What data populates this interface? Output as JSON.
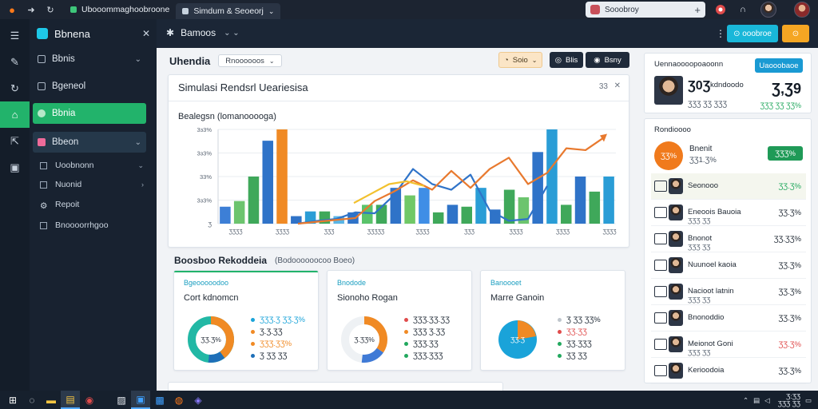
{
  "browser": {
    "tabs": [
      {
        "label": "Ubooommaghoobroone",
        "active": false
      },
      {
        "label": "Simdum & Seoeorj",
        "active": true
      }
    ],
    "address": "Sooobroy",
    "icons": [
      "firefox-icon",
      "forward-icon",
      "reload-icon",
      "shield-icon",
      "bell-icon",
      "avatar"
    ]
  },
  "sidebar": {
    "brand": "Bbnena",
    "close": "✕",
    "items": [
      {
        "label": "Bbnis",
        "chevron": "⌄"
      },
      {
        "label": "Bgeneol",
        "chevron": ""
      },
      {
        "label": "Bbnia",
        "chevron": "",
        "active": true
      },
      {
        "label": "Bbeon",
        "chevron": "⌄",
        "highlighted": true
      }
    ],
    "subitems": [
      {
        "label": "Uoobnonn",
        "chevron": "⌄"
      },
      {
        "label": "Nuonid",
        "chevron": "›"
      },
      {
        "label": "Repoit",
        "chevron": ""
      },
      {
        "label": "Bnoooorrhgoo",
        "chevron": ""
      }
    ]
  },
  "topbar": {
    "title": "Bamoos",
    "more": "⋮",
    "button_primary": "⊙ ooobroe",
    "button_secondary": "⊙"
  },
  "main": {
    "header": "Uhendia",
    "dropdown": "Rnoooooos",
    "btn_select": "Soio",
    "btn_a": "Blis",
    "btn_b": "Bsny",
    "chart_card": {
      "title": "Simulasi Rendsrl Ueariesisa",
      "controls": "33",
      "close": "✕",
      "subtitle": "Bealegsn (lomanooooga)"
    },
    "section": {
      "title": "Boosboo Rekoddeia",
      "pill": "(Bodoooooocoo Boeo)"
    },
    "minis": [
      {
        "tag": "Bgeooooodoo",
        "name": "Cort kdnomcn",
        "center": "ƷƷ.Ʒ%",
        "legend": [
          {
            "text": "ƷƷƷ.Ʒ ƷƷ.Ʒ%",
            "color": "#1aa3d9"
          },
          {
            "text": "Ʒ.Ʒ.ƷƷ",
            "color": "#f08a24"
          },
          {
            "text": "ƷƷƷ.ƷƷ%",
            "color": "#f08a24"
          },
          {
            "text": "Ʒ ƷƷ ƷƷ",
            "color": "#1e6fb8"
          }
        ]
      },
      {
        "tag": "Bnodode",
        "name": "Sionoho Rogan",
        "center": "Ʒ.ƷƷ%",
        "legend": [
          {
            "text": "ƷƷƷ.ƷƷ.ƷƷ",
            "color": "#e04b4b"
          },
          {
            "text": "ƷƷƷ Ʒ.ƷƷ",
            "color": "#f08a24"
          },
          {
            "text": "ƷƷƷ.ƷƷ",
            "color": "#22a85e"
          },
          {
            "text": "ƷƷƷ.ƷƷƷ",
            "color": "#22a85e"
          }
        ]
      },
      {
        "tag": "Banoooet",
        "name": "Marre Ganoin",
        "center": "ƷƷ.Ʒ",
        "legend": [
          {
            "text": "Ʒ ƷƷ ƷƷ%",
            "color": "#c0c6cd"
          },
          {
            "text": "ƷƷ.ƷƷ",
            "color": "#e04b4b"
          },
          {
            "text": "ƷƷ.ƷƷƷ",
            "color": "#22a85e"
          },
          {
            "text": "ƷƷ ƷƷ",
            "color": "#22a85e"
          }
        ]
      }
    ]
  },
  "chart_data": {
    "type": "bar",
    "ytick_labels": [
      "3ɜ3%",
      "3ɜ3%",
      "33%",
      "3ɜ3%",
      "Ʒ"
    ],
    "xtick_labels": [
      "ƷƷƷƷ",
      "ƷƷƷƷ",
      "ƷƷƷ",
      "ƷƷƷƷƷ",
      "ƷƷƷƷ",
      "ƷƷƷ",
      "ƷƷƷƷ",
      "ƷƷƷƷ",
      "ƷƷƷƷ"
    ],
    "ylim": [
      0,
      100
    ],
    "bar_groups": [
      [
        {
          "v": 18,
          "c": "#3d7fd6"
        },
        {
          "v": 24,
          "c": "#6cc46e"
        },
        {
          "v": 50,
          "c": "#3fa85a"
        },
        {
          "v": 88,
          "c": "#2f73c8"
        },
        {
          "v": 100,
          "c": "#f08a24"
        }
      ],
      [
        {
          "v": 8,
          "c": "#2f73c8"
        },
        {
          "v": 13,
          "c": "#2a9dd6"
        },
        {
          "v": 13,
          "c": "#3fa85a"
        },
        {
          "v": 8,
          "c": "#5ab6e6"
        },
        {
          "v": 12,
          "c": "#2f73c8"
        }
      ],
      [
        {
          "v": 20,
          "c": "#5ac36a"
        },
        {
          "v": 20,
          "c": "#3fa85a"
        },
        {
          "v": 38,
          "c": "#2f73c8"
        },
        {
          "v": 30,
          "c": "#70c866"
        },
        {
          "v": 38,
          "c": "#3f8ee6"
        }
      ],
      [
        {
          "v": 12,
          "c": "#3fa85a"
        },
        {
          "v": 20,
          "c": "#2f73c8"
        },
        {
          "v": 18,
          "c": "#3fa85a"
        },
        {
          "v": 38,
          "c": "#2a9dd6"
        },
        {
          "v": 15,
          "c": "#2f73c8"
        }
      ],
      [
        {
          "v": 36,
          "c": "#3fa85a"
        },
        {
          "v": 28,
          "c": "#6cc46e"
        },
        {
          "v": 76,
          "c": "#2f73c8"
        },
        {
          "v": 100,
          "c": "#2a9dd6"
        },
        {
          "v": 20,
          "c": "#3fa85a"
        }
      ],
      [
        {
          "v": 50,
          "c": "#2f73c8"
        },
        {
          "v": 34,
          "c": "#3fa85a"
        },
        {
          "v": 50,
          "c": "#2a9dd6"
        }
      ]
    ],
    "series": [
      {
        "name": "",
        "color": "#2f73c8",
        "values": [
          0,
          3,
          5,
          12,
          11,
          30,
          58,
          42,
          36,
          52,
          14,
          3,
          5,
          40
        ]
      },
      {
        "name": "",
        "color": "#e8792e",
        "values": [
          0,
          2,
          4,
          6,
          24,
          34,
          46,
          36,
          56,
          38,
          58,
          70,
          42,
          54,
          80,
          78,
          92
        ]
      },
      {
        "name": "",
        "color": "#f2c12e",
        "values": [
          10,
          30,
          50,
          56,
          46
        ]
      }
    ]
  },
  "right": {
    "card1": {
      "label": "Uennaoooopoaoonn",
      "button": "Uaooobaoe",
      "big": "Ʒ0Ʒ",
      "person": "kdndoodo",
      "info": "ƷƷƷ ƷƷ ƷƷƷ",
      "value": "Ʒ,Ʒ9",
      "change": "ƷƷƷ ƷƷ ƷƷ%"
    },
    "card2": {
      "label": "Rondioooo",
      "featured": {
        "circle": "ƷƷ%",
        "name": "Bnenit",
        "sub": "ƷƷ1.Ʒ%",
        "badge": "ƷƷƷ%"
      },
      "rows": [
        {
          "name": "Seonooo",
          "sub": "",
          "pct": "ƷƷ.Ʒ%",
          "pct_color": "#22a85e",
          "photo": true,
          "hl": true
        },
        {
          "name": "Eneoois Bauoia",
          "sub": "ƷƷƷ ƷƷ",
          "pct": "ƷƷ.Ʒ%",
          "pct_color": "#1f2833",
          "photo": true
        },
        {
          "name": "Bnonot",
          "sub": "ƷƷƷ ƷƷ",
          "pct": "ƷƷ.ƷƷ%",
          "pct_color": "#1f2833",
          "photo": true
        },
        {
          "name": "Nuunoel kaoia",
          "sub": "",
          "pct": "ƷƷ.Ʒ%",
          "pct_color": "#1f2833",
          "photo": true
        },
        {
          "name": "Nacioot latnin",
          "sub": "ƷƷƷ ƷƷ",
          "pct": "ƷƷ.Ʒ%",
          "pct_color": "#1f2833",
          "photo": true
        },
        {
          "name": "Bnonoddio",
          "sub": "",
          "pct": "ƷƷ.Ʒ%",
          "pct_color": "#1f2833",
          "photo": true
        },
        {
          "name": "Meionot Goni",
          "sub": "ƷƷƷ ƷƷ",
          "pct": "ƷƷ.Ʒ%",
          "pct_color": "#e04b4b",
          "photo": true
        },
        {
          "name": "Kerioodoia",
          "sub": "",
          "pct": "ƷƷ.Ʒ%",
          "pct_color": "#1f2833",
          "photo": true
        }
      ]
    }
  },
  "taskbar": {
    "clock_time": "Ʒ:ƷƷ",
    "clock_date": "ƷƷƷ ƷƷ"
  }
}
